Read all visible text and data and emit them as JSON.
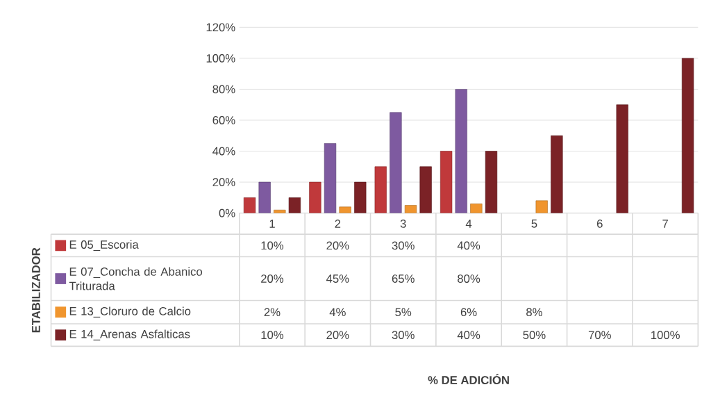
{
  "chart_data": {
    "type": "bar",
    "annotations": [
      "ETABILIZADOR",
      "% DE ADICIÓN"
    ],
    "categories": [
      "1",
      "2",
      "3",
      "4",
      "5",
      "6",
      "7"
    ],
    "series": [
      {
        "name": "E 05_Escoria",
        "color": "#c0393b",
        "values": [
          10,
          20,
          30,
          40,
          null,
          null,
          null
        ],
        "value_labels": [
          "10%",
          "20%",
          "30%",
          "40%",
          null,
          null,
          null
        ]
      },
      {
        "name": "E 07_Concha de Abanico Triturada",
        "color": "#7e5aa0",
        "values": [
          20,
          45,
          65,
          80,
          null,
          null,
          null
        ],
        "value_labels": [
          "20%",
          "45%",
          "65%",
          "80%",
          null,
          null,
          null
        ]
      },
      {
        "name": "E 13_Cloruro de Calcio",
        "color": "#f0952e",
        "values": [
          2,
          4,
          5,
          6,
          8,
          null,
          null
        ],
        "value_labels": [
          "2%",
          "4%",
          "5%",
          "6%",
          "8%",
          null,
          null
        ]
      },
      {
        "name": "E 14_Arenas Asfalticas",
        "color": "#7b2226",
        "values": [
          10,
          20,
          30,
          40,
          50,
          70,
          100
        ],
        "value_labels": [
          "10%",
          "20%",
          "30%",
          "40%",
          "50%",
          "70%",
          "100%"
        ]
      }
    ],
    "ylim": [
      0,
      120
    ],
    "yticks": [
      {
        "value": 0,
        "label": "0%"
      },
      {
        "value": 20,
        "label": "20%"
      },
      {
        "value": 40,
        "label": "40%"
      },
      {
        "value": 60,
        "label": "60%"
      },
      {
        "value": 80,
        "label": "80%"
      },
      {
        "value": 100,
        "label": "100%"
      },
      {
        "value": 120,
        "label": "120%"
      }
    ],
    "grid": "y",
    "legend": "left"
  }
}
